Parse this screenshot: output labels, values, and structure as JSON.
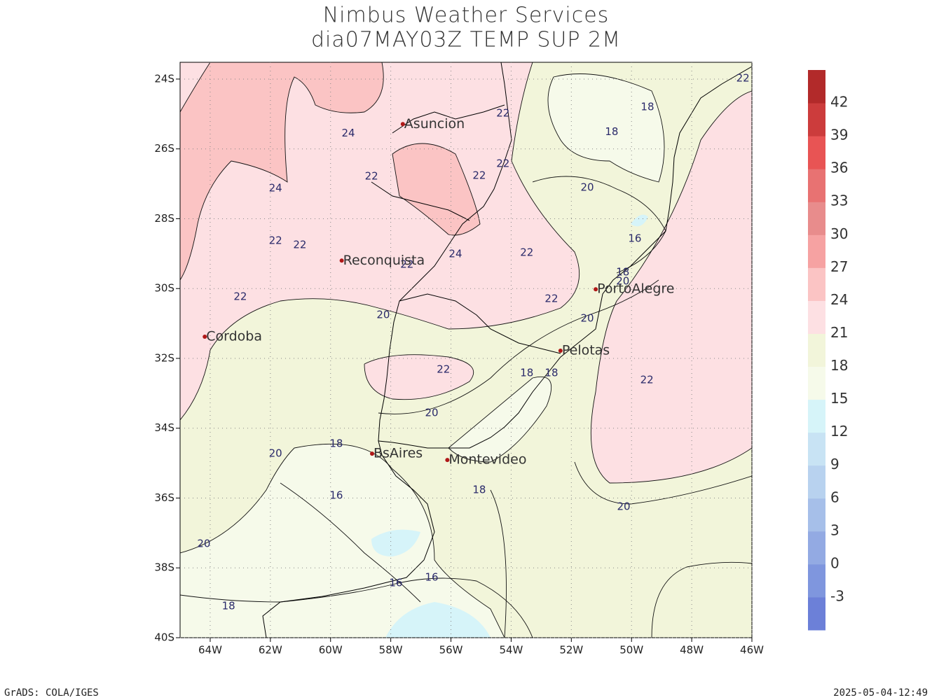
{
  "map": {
    "title": "Nimbus Weather Services",
    "subtitle": "dia07MAY03Z TEMP SUP 2M",
    "lonlim": [
      -65,
      -46
    ],
    "latlim": [
      -40,
      -23.52
    ],
    "grid": true,
    "xticks": [
      {
        "value": -64,
        "label": "64W"
      },
      {
        "value": -62,
        "label": "62W"
      },
      {
        "value": -60,
        "label": "60W"
      },
      {
        "value": -58,
        "label": "58W"
      },
      {
        "value": -56,
        "label": "56W"
      },
      {
        "value": -54,
        "label": "54W"
      },
      {
        "value": -52,
        "label": "52W"
      },
      {
        "value": -50,
        "label": "50W"
      },
      {
        "value": -48,
        "label": "48W"
      },
      {
        "value": -46,
        "label": "46W"
      }
    ],
    "yticks": [
      {
        "value": -24,
        "label": "24S"
      },
      {
        "value": -26,
        "label": "26S"
      },
      {
        "value": -28,
        "label": "28S"
      },
      {
        "value": -30,
        "label": "30S"
      },
      {
        "value": -32,
        "label": "32S"
      },
      {
        "value": -34,
        "label": "34S"
      },
      {
        "value": -36,
        "label": "36S"
      },
      {
        "value": -38,
        "label": "38S"
      },
      {
        "value": -40,
        "label": "40S"
      }
    ],
    "cities": [
      {
        "name": "Asuncion",
        "lon": -57.6,
        "lat": -25.29
      },
      {
        "name": "Reconquista",
        "lon": -59.63,
        "lat": -29.2
      },
      {
        "name": "Cordoba",
        "lon": -64.18,
        "lat": -31.38
      },
      {
        "name": "PortoAlegre",
        "lon": -51.19,
        "lat": -30.02
      },
      {
        "name": "Pelotas",
        "lon": -52.36,
        "lat": -31.78
      },
      {
        "name": "BsAires",
        "lon": -58.62,
        "lat": -34.73
      },
      {
        "name": "Montevideo",
        "lon": -56.12,
        "lat": -34.91
      }
    ],
    "contour_labels": [
      {
        "value": 24,
        "lon": -59.41,
        "lat": -25.55
      },
      {
        "value": 22,
        "lon": -54.27,
        "lat": -24.98
      },
      {
        "value": 18,
        "lon": -49.47,
        "lat": -24.8
      },
      {
        "value": 18,
        "lon": -50.66,
        "lat": -25.51
      },
      {
        "value": 22,
        "lon": -46.3,
        "lat": -23.98
      },
      {
        "value": 22,
        "lon": -54.27,
        "lat": -26.43
      },
      {
        "value": 22,
        "lon": -55.06,
        "lat": -26.77
      },
      {
        "value": 22,
        "lon": -58.64,
        "lat": -26.79
      },
      {
        "value": 24,
        "lon": -61.83,
        "lat": -27.13
      },
      {
        "value": 20,
        "lon": -51.47,
        "lat": -27.11
      },
      {
        "value": 22,
        "lon": -61.83,
        "lat": -28.63
      },
      {
        "value": 22,
        "lon": -61.02,
        "lat": -28.75
      },
      {
        "value": 24,
        "lon": -55.85,
        "lat": -29.01
      },
      {
        "value": 22,
        "lon": -53.48,
        "lat": -28.97
      },
      {
        "value": 16,
        "lon": -49.89,
        "lat": -28.57
      },
      {
        "value": 22,
        "lon": -57.46,
        "lat": -29.31
      },
      {
        "value": 18,
        "lon": -50.29,
        "lat": -29.53
      },
      {
        "value": 20,
        "lon": -50.29,
        "lat": -29.8
      },
      {
        "value": 22,
        "lon": -63.0,
        "lat": -30.24
      },
      {
        "value": 22,
        "lon": -52.66,
        "lat": -30.3
      },
      {
        "value": 20,
        "lon": -58.25,
        "lat": -30.76
      },
      {
        "value": 20,
        "lon": -51.47,
        "lat": -30.86
      },
      {
        "value": 22,
        "lon": -56.25,
        "lat": -32.32
      },
      {
        "value": 18,
        "lon": -53.48,
        "lat": -32.42
      },
      {
        "value": 18,
        "lon": -52.66,
        "lat": -32.42
      },
      {
        "value": 22,
        "lon": -49.49,
        "lat": -32.62
      },
      {
        "value": 20,
        "lon": -56.64,
        "lat": -33.56
      },
      {
        "value": 18,
        "lon": -59.81,
        "lat": -34.45
      },
      {
        "value": 20,
        "lon": -61.83,
        "lat": -34.73
      },
      {
        "value": 18,
        "lon": -55.06,
        "lat": -35.77
      },
      {
        "value": 16,
        "lon": -59.81,
        "lat": -35.93
      },
      {
        "value": 20,
        "lon": -50.26,
        "lat": -36.25
      },
      {
        "value": 20,
        "lon": -64.21,
        "lat": -37.31
      },
      {
        "value": 16,
        "lon": -57.83,
        "lat": -38.44
      },
      {
        "value": 16,
        "lon": -56.64,
        "lat": -38.28
      },
      {
        "value": 18,
        "lon": -63.39,
        "lat": -39.1
      }
    ],
    "colorbar": {
      "levels": [
        -3,
        0,
        3,
        6,
        9,
        12,
        15,
        18,
        21,
        24,
        27,
        30,
        33,
        36,
        39,
        42
      ],
      "colors": [
        "#6c80d8",
        "#7f96de",
        "#93aae3",
        "#a6bfe9",
        "#b8d2ef",
        "#c8e3f4",
        "#d6f4f9",
        "#f6faea",
        "#f2f5da",
        "#fde0e3",
        "#fbc4c4",
        "#f6a2a2",
        "#e88c8c",
        "#e87272",
        "#e85454",
        "#cc3c3c",
        "#b22a2a"
      ]
    },
    "footer_left": "GrADS: COLA/IGES",
    "footer_right": "2025-05-04-12:49"
  }
}
